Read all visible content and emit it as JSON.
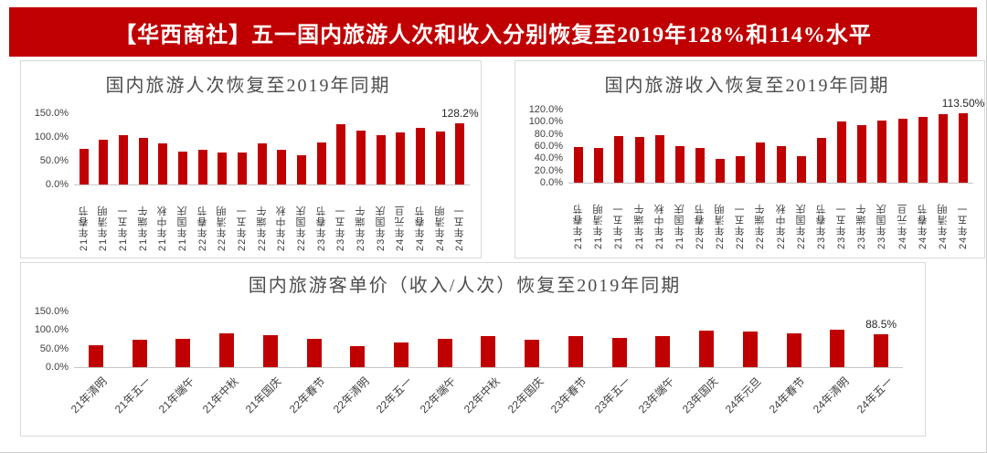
{
  "banner": {
    "title": "【华西商社】五一国内旅游人次和收入分别恢复至2019年128%和114%水平",
    "bg_color": "#c00000",
    "text_color": "#ffffff"
  },
  "colors": {
    "bar": "#c00000",
    "panel_border": "#d9d9d9",
    "axis_line": "#c6c6c6",
    "tick_text": "#404040",
    "title_text": "#4d4d4d"
  },
  "chart_data": [
    {
      "type": "bar",
      "title": "国内旅游人次恢复至2019年同期",
      "categories": [
        "21年春节",
        "21年清明",
        "21年五一",
        "21年端午",
        "21年中秋",
        "21年国庆",
        "22年春节",
        "22年清明",
        "22年五一",
        "22年端午",
        "22年中秋",
        "22年国庆",
        "23年春节",
        "23年五一",
        "23年端午",
        "23年国庆",
        "24年元旦",
        "24年春节",
        "24年清明",
        "24年五一"
      ],
      "values": [
        75.3,
        94.5,
        103.2,
        98.7,
        87.2,
        70.1,
        73.9,
        68.0,
        66.8,
        86.8,
        72.6,
        60.7,
        88.6,
        127.0,
        112.8,
        104.1,
        109.4,
        119.0,
        111.5,
        128.2
      ],
      "yticks": [
        "150.0%",
        "100.0%",
        "50.0%",
        "0.0%"
      ],
      "ylim": [
        0,
        150
      ],
      "ylabel": "",
      "xlabel": "",
      "grid": false,
      "legend": "none",
      "last_label": "128.2%",
      "bar_color": "#c00000"
    },
    {
      "type": "bar",
      "title": "国内旅游收入恢复至2019年同期",
      "categories": [
        "21年春节",
        "21年清明",
        "21年五一",
        "21年端午",
        "21年中秋",
        "21年国庆",
        "22年春节",
        "22年清明",
        "22年五一",
        "22年端午",
        "22年中秋",
        "22年国庆",
        "23年春节",
        "23年五一",
        "23年端午",
        "23年国庆",
        "24年元旦",
        "24年春节",
        "24年清明",
        "24年五一"
      ],
      "values": [
        58.6,
        56.7,
        77.0,
        74.8,
        78.6,
        59.9,
        56.3,
        39.2,
        44.0,
        65.6,
        60.6,
        44.2,
        73.1,
        100.7,
        94.9,
        101.5,
        105.6,
        107.7,
        112.7,
        113.5
      ],
      "yticks": [
        "120.0%",
        "100.0%",
        "80.0%",
        "60.0%",
        "40.0%",
        "20.0%",
        "0.0%"
      ],
      "ylim": [
        0,
        120
      ],
      "ylabel": "",
      "xlabel": "",
      "grid": false,
      "legend": "none",
      "last_label": "113.50%",
      "bar_color": "#c00000"
    },
    {
      "type": "bar",
      "title": "国内旅游客单价（收入/人次）恢复至2019年同期",
      "categories": [
        "21年清明",
        "21年五一",
        "21年端午",
        "21年中秋",
        "21年国庆",
        "22年春节",
        "22年清明",
        "22年五一",
        "22年端午",
        "22年中秋",
        "22年国庆",
        "23年春节",
        "23年五一",
        "23年端午",
        "23年国庆",
        "24年元旦",
        "24年春节",
        "24年清明",
        "24年五一"
      ],
      "values": [
        60.0,
        74.6,
        75.8,
        90.1,
        85.4,
        76.2,
        57.6,
        65.9,
        75.6,
        83.5,
        72.8,
        82.5,
        79.3,
        84.1,
        97.5,
        96.5,
        90.5,
        101.1,
        88.5
      ],
      "yticks": [
        "150.0%",
        "100.0%",
        "50.0%",
        "0.0%"
      ],
      "ylim": [
        0,
        150
      ],
      "ylabel": "",
      "xlabel": "",
      "grid": false,
      "legend": "none",
      "last_label": "88.5%",
      "bar_color": "#c00000"
    }
  ]
}
